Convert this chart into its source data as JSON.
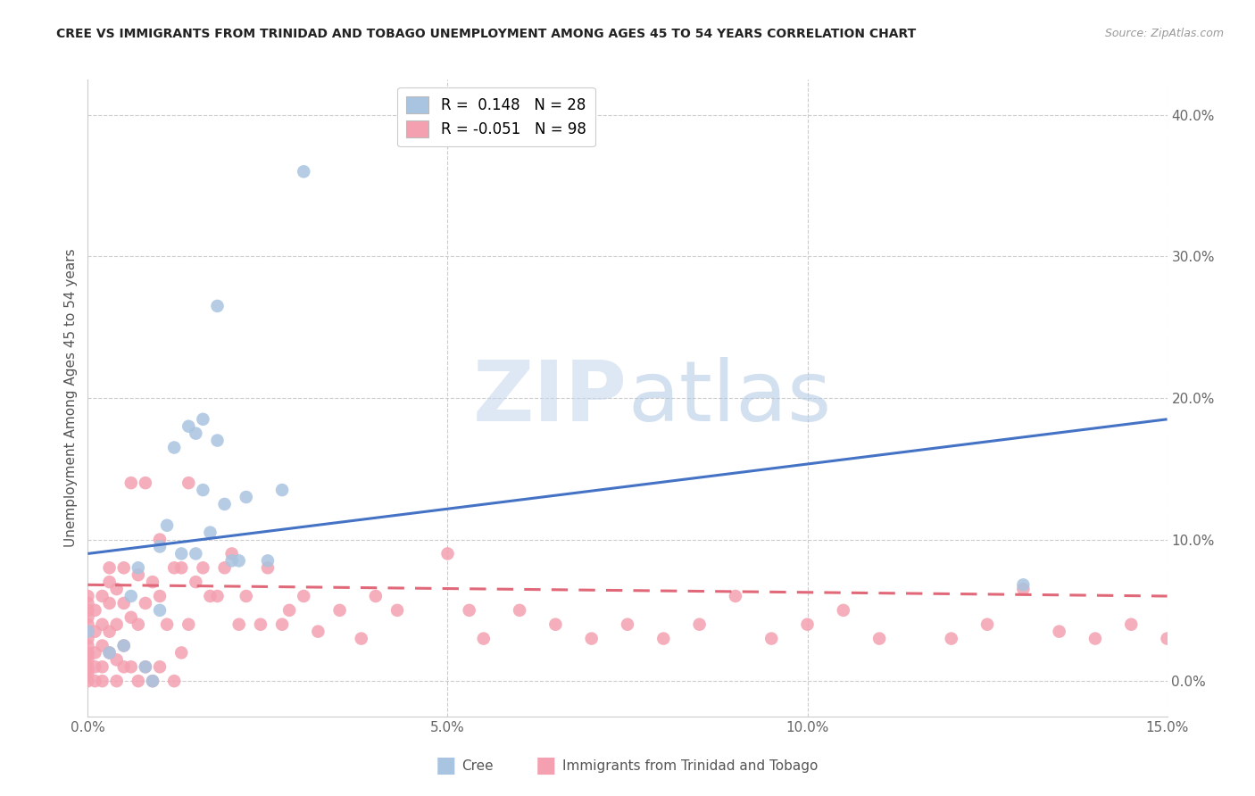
{
  "title": "CREE VS IMMIGRANTS FROM TRINIDAD AND TOBAGO UNEMPLOYMENT AMONG AGES 45 TO 54 YEARS CORRELATION CHART",
  "source": "Source: ZipAtlas.com",
  "ylabel": "Unemployment Among Ages 45 to 54 years",
  "xlim": [
    0.0,
    0.15
  ],
  "ylim": [
    -0.025,
    0.425
  ],
  "xticks": [
    0.0,
    0.05,
    0.1,
    0.15
  ],
  "xticklabels": [
    "0.0%",
    "5.0%",
    "10.0%",
    "15.0%"
  ],
  "yticks_right": [
    0.0,
    0.1,
    0.2,
    0.3,
    0.4
  ],
  "yticklabels_right": [
    "0.0%",
    "10.0%",
    "20.0%",
    "30.0%",
    "40.0%"
  ],
  "legend_R_cree": "0.148",
  "legend_N_cree": "28",
  "legend_R_immigrants": "-0.051",
  "legend_N_immigrants": "98",
  "cree_color": "#a8c4e0",
  "immigrant_color": "#f4a0b0",
  "cree_line_color": "#4472c4",
  "immigrant_line_color": "#e06878",
  "watermark_zip": "ZIP",
  "watermark_atlas": "atlas",
  "background_color": "#ffffff",
  "cree_x": [
    0.0,
    0.003,
    0.005,
    0.006,
    0.007,
    0.008,
    0.009,
    0.01,
    0.01,
    0.011,
    0.012,
    0.013,
    0.014,
    0.015,
    0.015,
    0.016,
    0.016,
    0.017,
    0.018,
    0.018,
    0.019,
    0.02,
    0.021,
    0.022,
    0.025,
    0.027,
    0.03,
    0.13
  ],
  "cree_y": [
    0.035,
    0.02,
    0.025,
    0.06,
    0.08,
    0.01,
    0.0,
    0.05,
    0.095,
    0.11,
    0.165,
    0.09,
    0.18,
    0.175,
    0.09,
    0.135,
    0.185,
    0.105,
    0.265,
    0.17,
    0.125,
    0.085,
    0.085,
    0.13,
    0.085,
    0.135,
    0.36,
    0.068
  ],
  "imm_x": [
    0.0,
    0.0,
    0.0,
    0.0,
    0.0,
    0.0,
    0.0,
    0.0,
    0.0,
    0.0,
    0.0,
    0.0,
    0.0,
    0.0,
    0.0,
    0.001,
    0.001,
    0.001,
    0.001,
    0.001,
    0.002,
    0.002,
    0.002,
    0.002,
    0.002,
    0.003,
    0.003,
    0.003,
    0.003,
    0.003,
    0.004,
    0.004,
    0.004,
    0.004,
    0.005,
    0.005,
    0.005,
    0.005,
    0.006,
    0.006,
    0.006,
    0.007,
    0.007,
    0.007,
    0.008,
    0.008,
    0.008,
    0.009,
    0.009,
    0.01,
    0.01,
    0.01,
    0.011,
    0.012,
    0.012,
    0.013,
    0.013,
    0.014,
    0.014,
    0.015,
    0.016,
    0.017,
    0.018,
    0.019,
    0.02,
    0.021,
    0.022,
    0.024,
    0.025,
    0.027,
    0.028,
    0.03,
    0.032,
    0.035,
    0.038,
    0.04,
    0.043,
    0.05,
    0.053,
    0.055,
    0.06,
    0.065,
    0.07,
    0.075,
    0.08,
    0.085,
    0.09,
    0.095,
    0.1,
    0.105,
    0.11,
    0.12,
    0.125,
    0.13,
    0.135,
    0.14,
    0.145,
    0.15
  ],
  "imm_y": [
    0.0,
    0.005,
    0.008,
    0.01,
    0.015,
    0.018,
    0.02,
    0.025,
    0.03,
    0.035,
    0.04,
    0.045,
    0.05,
    0.055,
    0.06,
    0.0,
    0.01,
    0.02,
    0.035,
    0.05,
    0.0,
    0.01,
    0.025,
    0.04,
    0.06,
    0.02,
    0.035,
    0.055,
    0.07,
    0.08,
    0.0,
    0.015,
    0.04,
    0.065,
    0.01,
    0.025,
    0.055,
    0.08,
    0.01,
    0.045,
    0.14,
    0.0,
    0.04,
    0.075,
    0.01,
    0.055,
    0.14,
    0.0,
    0.07,
    0.01,
    0.06,
    0.1,
    0.04,
    0.0,
    0.08,
    0.02,
    0.08,
    0.04,
    0.14,
    0.07,
    0.08,
    0.06,
    0.06,
    0.08,
    0.09,
    0.04,
    0.06,
    0.04,
    0.08,
    0.04,
    0.05,
    0.06,
    0.035,
    0.05,
    0.03,
    0.06,
    0.05,
    0.09,
    0.05,
    0.03,
    0.05,
    0.04,
    0.03,
    0.04,
    0.03,
    0.04,
    0.06,
    0.03,
    0.04,
    0.05,
    0.03,
    0.03,
    0.04,
    0.065,
    0.035,
    0.03,
    0.04,
    0.03
  ],
  "cree_line_x": [
    0.0,
    0.15
  ],
  "cree_line_y": [
    0.09,
    0.185
  ],
  "imm_line_x": [
    0.0,
    0.15
  ],
  "imm_line_y": [
    0.068,
    0.06
  ]
}
